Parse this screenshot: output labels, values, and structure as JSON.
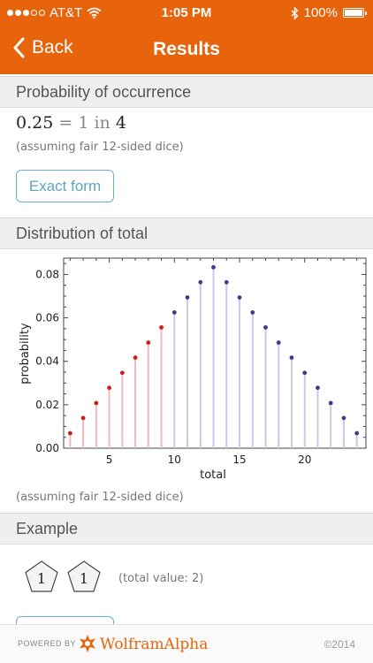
{
  "status_bar": {
    "carrier": "AT&T",
    "time": "1:05 PM",
    "battery": "100%",
    "icons": [
      "signal-dots-icon",
      "wifi-icon",
      "bluetooth-icon",
      "battery-icon"
    ]
  },
  "nav": {
    "back_label": "Back",
    "title": "Results"
  },
  "probability": {
    "header": "Probability of occurrence",
    "value": "0.25",
    "eq": "=",
    "num": "1",
    "in_word": "in",
    "den": "4",
    "note": "(assuming fair 12-sided dice)",
    "button_label": "Exact form"
  },
  "distribution": {
    "header": "Distribution of total",
    "note": "(assuming fair 12-sided dice)"
  },
  "example": {
    "header": "Example",
    "dice": [
      "1",
      "1"
    ],
    "note": "(total value: 2)"
  },
  "footer": {
    "powered_by": "POWERED BY",
    "brand": "WolframAlpha",
    "copyright": "©2014"
  },
  "colors": {
    "brand_orange": "#e8640c",
    "highlight_red": "#d21a1a",
    "highlight_red_line": "#f2b8c0",
    "series_blue": "#3c3c8c",
    "series_blue_line": "#c9c9e9",
    "button_blue": "#5aa7c0"
  },
  "chart_data": {
    "type": "scatter",
    "style": "stem",
    "xlabel": "total",
    "ylabel": "probability",
    "xlim": [
      1.5,
      24.7
    ],
    "ylim": [
      0,
      0.0875
    ],
    "xticks": [
      5,
      10,
      15,
      20
    ],
    "yticks": [
      0.0,
      0.02,
      0.04,
      0.06,
      0.08
    ],
    "ytick_labels": [
      "0.00",
      "0.02",
      "0.04",
      "0.06",
      "0.08"
    ],
    "highlight_max_x": 9,
    "x": [
      2,
      3,
      4,
      5,
      6,
      7,
      8,
      9,
      10,
      11,
      12,
      13,
      14,
      15,
      16,
      17,
      18,
      19,
      20,
      21,
      22,
      23,
      24
    ],
    "y": [
      0.0069,
      0.0139,
      0.0208,
      0.0278,
      0.0347,
      0.0417,
      0.0486,
      0.0556,
      0.0625,
      0.0694,
      0.0764,
      0.0833,
      0.0764,
      0.0694,
      0.0625,
      0.0556,
      0.0486,
      0.0417,
      0.0347,
      0.0278,
      0.0208,
      0.0139,
      0.0069
    ]
  }
}
